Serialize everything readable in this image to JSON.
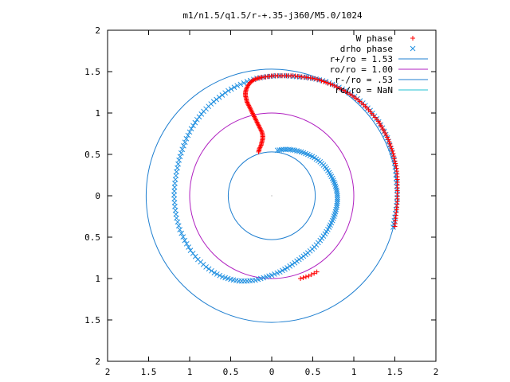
{
  "chart_data": {
    "type": "scatter",
    "title": "m1/n1.5/q1.5/r-+.35-j360/M5.0/1024",
    "xlabel": "",
    "ylabel": "",
    "xlim": [
      -2,
      2
    ],
    "ylim": [
      -2,
      2
    ],
    "x_ticks": [
      -2,
      -1.5,
      -1,
      -0.5,
      0,
      0.5,
      1,
      1.5,
      2
    ],
    "x_tick_labels": [
      "2",
      "1.5",
      "1",
      "0.5",
      "0",
      "0.5",
      "1",
      "1.5",
      "2"
    ],
    "y_ticks": [
      -2,
      -1.5,
      -1,
      -0.5,
      0,
      0.5,
      1,
      1.5,
      2
    ],
    "y_tick_labels": [
      "2",
      "1.5",
      "1",
      "0.5",
      "0",
      "0.5",
      "1",
      "1.5",
      "2"
    ],
    "grid": false,
    "legend_position": "top-right",
    "circles": [
      {
        "name": "r+/ro = 1.53",
        "radius": 1.53,
        "color": "#1f7fd0"
      },
      {
        "name": "ro/ro = 1.00",
        "radius": 1.0,
        "color": "#b020c0"
      },
      {
        "name": "r-/ro = .53",
        "radius": 0.53,
        "color": "#1f7fd0"
      },
      {
        "name": "rc/ro = NaN",
        "radius": null,
        "color": "#20c0d0"
      }
    ],
    "series": [
      {
        "name": "W phase",
        "marker": "+",
        "color": "#ff0000",
        "points": [
          [
            -0.16,
            0.53
          ],
          [
            -0.15,
            0.57
          ],
          [
            -0.13,
            0.61
          ],
          [
            -0.12,
            0.65
          ],
          [
            -0.11,
            0.69
          ],
          [
            -0.11,
            0.73
          ],
          [
            -0.12,
            0.77
          ],
          [
            -0.14,
            0.81
          ],
          [
            -0.16,
            0.85
          ],
          [
            -0.18,
            0.89
          ],
          [
            -0.2,
            0.93
          ],
          [
            -0.22,
            0.97
          ],
          [
            -0.24,
            1.01
          ],
          [
            -0.26,
            1.05
          ],
          [
            -0.28,
            1.09
          ],
          [
            -0.3,
            1.13
          ],
          [
            -0.31,
            1.17
          ],
          [
            -0.32,
            1.21
          ],
          [
            -0.32,
            1.25
          ],
          [
            -0.31,
            1.29
          ],
          [
            -0.29,
            1.33
          ],
          [
            -0.26,
            1.37
          ],
          [
            -0.22,
            1.4
          ],
          [
            -0.17,
            1.42
          ],
          [
            -0.12,
            1.43
          ],
          [
            -0.05,
            1.44
          ],
          [
            0.02,
            1.45
          ],
          [
            0.1,
            1.45
          ],
          [
            0.18,
            1.45
          ],
          [
            0.26,
            1.45
          ],
          [
            0.34,
            1.44
          ],
          [
            0.42,
            1.43
          ],
          [
            0.5,
            1.42
          ],
          [
            0.58,
            1.4
          ],
          [
            0.66,
            1.37
          ],
          [
            0.74,
            1.34
          ],
          [
            0.82,
            1.3
          ],
          [
            0.9,
            1.26
          ],
          [
            0.98,
            1.21
          ],
          [
            1.05,
            1.16
          ],
          [
            1.12,
            1.1
          ],
          [
            1.18,
            1.04
          ],
          [
            1.24,
            0.97
          ],
          [
            1.3,
            0.9
          ],
          [
            1.34,
            0.83
          ],
          [
            1.38,
            0.76
          ],
          [
            1.42,
            0.68
          ],
          [
            1.45,
            0.6
          ],
          [
            1.48,
            0.51
          ],
          [
            1.5,
            0.42
          ],
          [
            1.52,
            0.33
          ],
          [
            1.53,
            0.23
          ],
          [
            1.53,
            0.13
          ],
          [
            1.53,
            0.03
          ],
          [
            1.53,
            -0.07
          ],
          [
            1.52,
            -0.17
          ],
          [
            1.51,
            -0.27
          ],
          [
            1.5,
            -0.37
          ],
          [
            0.55,
            -0.92
          ],
          [
            0.45,
            -0.97
          ],
          [
            0.35,
            -1.0
          ]
        ]
      },
      {
        "name": "drho phase",
        "marker": "x",
        "color": "#1f8fe0",
        "points": [
          [
            0.07,
            0.55
          ],
          [
            0.14,
            0.56
          ],
          [
            0.21,
            0.56
          ],
          [
            0.28,
            0.55
          ],
          [
            0.36,
            0.53
          ],
          [
            0.44,
            0.5
          ],
          [
            0.52,
            0.46
          ],
          [
            0.59,
            0.41
          ],
          [
            0.65,
            0.35
          ],
          [
            0.7,
            0.28
          ],
          [
            0.74,
            0.21
          ],
          [
            0.77,
            0.14
          ],
          [
            0.79,
            0.07
          ],
          [
            0.8,
            0.0
          ],
          [
            0.8,
            -0.07
          ],
          [
            0.79,
            -0.14
          ],
          [
            0.77,
            -0.22
          ],
          [
            0.74,
            -0.3
          ],
          [
            0.7,
            -0.38
          ],
          [
            0.65,
            -0.46
          ],
          [
            0.59,
            -0.54
          ],
          [
            0.52,
            -0.62
          ],
          [
            0.44,
            -0.69
          ],
          [
            0.36,
            -0.75
          ],
          [
            0.28,
            -0.81
          ],
          [
            0.19,
            -0.87
          ],
          [
            0.1,
            -0.92
          ],
          [
            0.0,
            -0.96
          ],
          [
            -0.1,
            -0.99
          ],
          [
            -0.2,
            -1.02
          ],
          [
            -0.3,
            -1.03
          ],
          [
            -0.4,
            -1.03
          ],
          [
            -0.5,
            -1.01
          ],
          [
            -0.6,
            -0.98
          ],
          [
            -0.7,
            -0.93
          ],
          [
            -0.8,
            -0.86
          ],
          [
            -0.9,
            -0.77
          ],
          [
            -0.99,
            -0.66
          ],
          [
            -1.06,
            -0.54
          ],
          [
            -1.12,
            -0.41
          ],
          [
            -1.16,
            -0.27
          ],
          [
            -1.18,
            -0.13
          ],
          [
            -1.19,
            0.01
          ],
          [
            -1.18,
            0.15
          ],
          [
            -1.16,
            0.29
          ],
          [
            -1.13,
            0.43
          ],
          [
            -1.09,
            0.56
          ],
          [
            -1.04,
            0.69
          ],
          [
            -0.98,
            0.81
          ],
          [
            -0.91,
            0.92
          ],
          [
            -0.83,
            1.02
          ],
          [
            -0.74,
            1.11
          ],
          [
            -0.64,
            1.19
          ],
          [
            -0.53,
            1.27
          ],
          [
            -0.42,
            1.33
          ],
          [
            -0.3,
            1.38
          ],
          [
            -0.18,
            1.42
          ],
          [
            -0.06,
            1.44
          ],
          [
            0.06,
            1.45
          ],
          [
            0.18,
            1.45
          ],
          [
            0.3,
            1.44
          ],
          [
            0.42,
            1.43
          ],
          [
            0.54,
            1.41
          ],
          [
            0.66,
            1.38
          ],
          [
            0.78,
            1.33
          ],
          [
            0.9,
            1.27
          ],
          [
            1.01,
            1.2
          ],
          [
            1.11,
            1.12
          ],
          [
            1.2,
            1.03
          ],
          [
            1.28,
            0.93
          ],
          [
            1.35,
            0.82
          ],
          [
            1.41,
            0.7
          ],
          [
            1.45,
            0.57
          ],
          [
            1.49,
            0.44
          ],
          [
            1.51,
            0.3
          ],
          [
            1.52,
            0.16
          ],
          [
            1.53,
            0.02
          ],
          [
            1.52,
            -0.12
          ],
          [
            1.5,
            -0.26
          ],
          [
            1.48,
            -0.38
          ]
        ]
      }
    ]
  }
}
